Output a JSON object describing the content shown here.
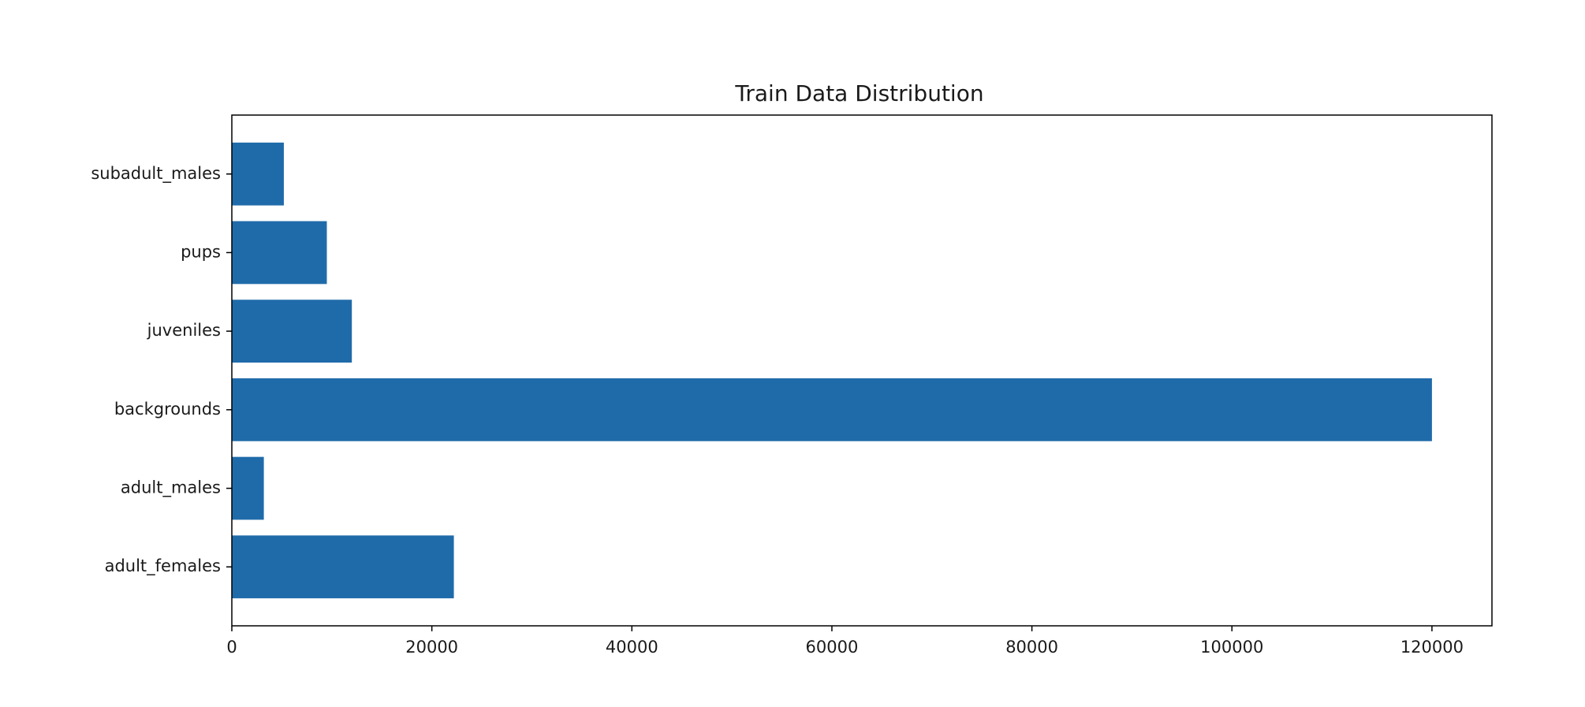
{
  "chart_data": {
    "type": "bar",
    "orientation": "horizontal",
    "title": "Train Data Distribution",
    "xlabel": "",
    "ylabel": "",
    "categories": [
      "adult_females",
      "adult_males",
      "backgrounds",
      "juveniles",
      "pups",
      "subadult_males"
    ],
    "values": [
      22200,
      3200,
      120000,
      12000,
      9500,
      5200
    ],
    "xlim": [
      0,
      126000
    ],
    "xticks": [
      0,
      20000,
      40000,
      60000,
      80000,
      100000,
      120000
    ],
    "xtick_labels": [
      "0",
      "20000",
      "40000",
      "60000",
      "80000",
      "100000",
      "120000"
    ],
    "grid": false,
    "legend": "none",
    "colors": {
      "bar": "#1f6baa",
      "axes": "#000000"
    }
  }
}
